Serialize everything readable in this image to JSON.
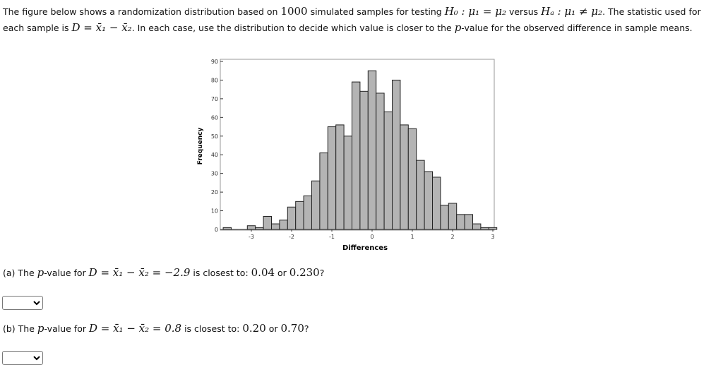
{
  "intro": {
    "line1_a": "The figure below shows a randomization distribution based on ",
    "n": "1000",
    "line1_b": " simulated samples for testing ",
    "h0": "H₀ : μ₁ = μ₂",
    "line1_c": " versus ",
    "ha": "Hₐ : μ₁ ≠ μ₂",
    "line1_d": ". The statistic used for",
    "line2_a": "each sample is ",
    "stat": "D = x̄₁ − x̄₂",
    "line2_b": ". In each case, use the distribution to decide which value is closer to the ",
    "p": "p",
    "line2_c": "-value for the observed difference in sample means."
  },
  "questions": [
    {
      "prefix": "(a) The ",
      "p": "p",
      "mid": "-value for ",
      "expr": "D = x̄₁ − x̄₂ = −2.9",
      "tail": " is closest to: ",
      "opt1": "0.04",
      "or": " or ",
      "opt2": "0.230",
      "end": "?",
      "select_value": ""
    },
    {
      "prefix": "(b) The ",
      "p": "p",
      "mid": "-value for ",
      "expr": "D = x̄₁ − x̄₂ = 0.8",
      "tail": " is closest to: ",
      "opt1": "0.20",
      "or": " or ",
      "opt2": "0.70",
      "end": "?",
      "select_value": ""
    }
  ],
  "chart_data": {
    "type": "bar",
    "title": "",
    "xlabel": "Differences",
    "ylabel": "Frequency",
    "xlim": [
      -3.8,
      3.2
    ],
    "ylim": [
      0,
      90
    ],
    "xticks": [
      "-3",
      "-2",
      "-1",
      "0",
      "1",
      "2",
      "3"
    ],
    "yticks": [
      "0",
      "10",
      "20",
      "30",
      "40",
      "50",
      "60",
      "70",
      "80",
      "90"
    ],
    "bin_width": 0.2,
    "x": [
      -3.6,
      -3.4,
      -3.2,
      -3.0,
      -2.8,
      -2.6,
      -2.4,
      -2.2,
      -2.0,
      -1.8,
      -1.6,
      -1.4,
      -1.2,
      -1.0,
      -0.8,
      -0.6,
      -0.4,
      -0.2,
      0.0,
      0.2,
      0.4,
      0.6,
      0.8,
      1.0,
      1.2,
      1.4,
      1.6,
      1.8,
      2.0,
      2.2,
      2.4,
      2.6,
      2.8,
      3.0
    ],
    "values": [
      1,
      0,
      0,
      2,
      1,
      7,
      3,
      5,
      12,
      15,
      18,
      26,
      41,
      55,
      56,
      50,
      79,
      74,
      85,
      73,
      63,
      80,
      56,
      54,
      37,
      31,
      28,
      13,
      14,
      8,
      8,
      3,
      1,
      1
    ],
    "bar_color": "#b4b4b4",
    "grid": false
  }
}
